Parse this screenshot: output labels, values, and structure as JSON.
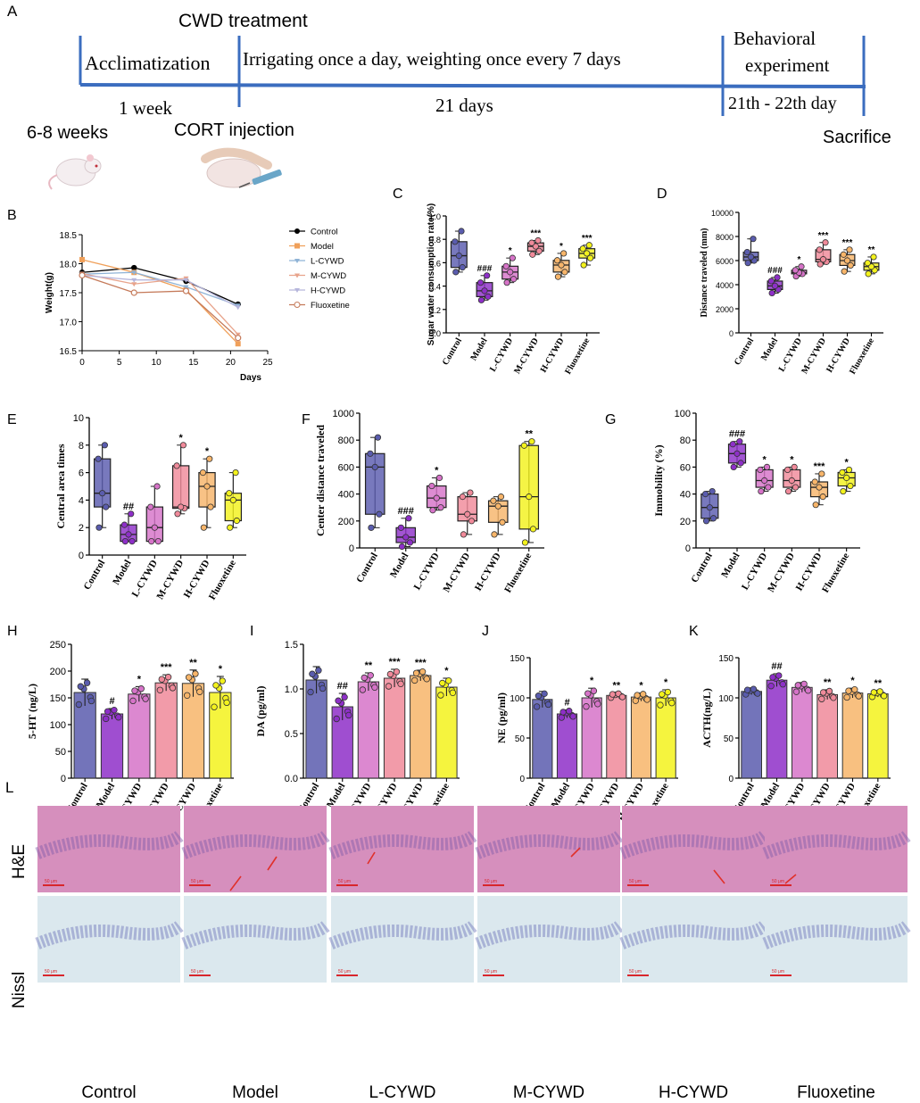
{
  "colors": {
    "control": "#5a5cae",
    "model": "#8e2fc8",
    "l": "#d673c8",
    "m": "#f08a9a",
    "h": "#f7b56a",
    "f": "#f3f21c",
    "axis": "#000000",
    "timeline": "#3b6dbf",
    "he_bg": "#d68fbd",
    "nissl_bg": "#dbe8ee",
    "arrow": "#e0302a"
  },
  "groups": [
    "Control",
    "Model",
    "L-CYWD",
    "M-CYWD",
    "H-CYWD",
    "Fluoxetine"
  ],
  "panelA": {
    "letter": "A",
    "cwd_treatment": "CWD treatment",
    "acclimatization": "Acclimatization",
    "irrigating": "Irrigating once a day, weighting once every 7 days",
    "behavioral1": "Behavioral",
    "behavioral2": "experiment",
    "one_week": "1 week",
    "days21": "21 days",
    "day_range": "21th - 22th day",
    "weeks": "6-8 weeks",
    "cort": "CORT injection",
    "sacrifice": "Sacrifice",
    "mouse_icon": "mouse-icon",
    "syringe_icon": "syringe-icon"
  },
  "panel_letters": {
    "B": "B",
    "C": "C",
    "D": "D",
    "E": "E",
    "F": "F",
    "G": "G",
    "H": "H",
    "I": "I",
    "J": "J",
    "K": "K",
    "L": "L"
  },
  "chart_data": [
    {
      "id": "B",
      "type": "line",
      "xlabel": "Days",
      "ylabel": "Weight(g)",
      "xlim": [
        0,
        25
      ],
      "ylim": [
        16.5,
        18.5
      ],
      "xticks": [
        "0",
        "5",
        "10",
        "15",
        "20",
        "25"
      ],
      "yticks": [
        "16.5",
        "17.0",
        "17.5",
        "18.0",
        "18.5"
      ],
      "x": [
        0,
        7,
        14,
        21
      ],
      "series": [
        {
          "name": "Control",
          "values": [
            17.85,
            17.93,
            17.7,
            17.3
          ]
        },
        {
          "name": "Model",
          "values": [
            18.07,
            17.85,
            17.55,
            16.62
          ]
        },
        {
          "name": "L-CYWD",
          "values": [
            17.82,
            17.85,
            17.6,
            17.28
          ]
        },
        {
          "name": "M-CYWD",
          "values": [
            17.83,
            17.65,
            17.75,
            16.78
          ]
        },
        {
          "name": "H-CYWD",
          "values": [
            17.8,
            17.72,
            17.72,
            17.25
          ]
        },
        {
          "name": "Fluoxetine",
          "values": [
            17.8,
            17.5,
            17.53,
            16.72
          ]
        }
      ]
    },
    {
      "id": "C",
      "type": "box",
      "ylabel": "Sugar water consumption rate(%)",
      "ylim": [
        0,
        1.0
      ],
      "yticks": [
        "0.0",
        "0.2",
        "0.4",
        "0.6",
        "0.8",
        "1.0"
      ],
      "boxes": [
        [
          0.52,
          0.56,
          0.66,
          0.78,
          0.87
        ],
        [
          0.28,
          0.31,
          0.36,
          0.43,
          0.49
        ],
        [
          0.43,
          0.46,
          0.52,
          0.57,
          0.64
        ],
        [
          0.67,
          0.7,
          0.74,
          0.77,
          0.79
        ],
        [
          0.48,
          0.52,
          0.58,
          0.62,
          0.68
        ],
        [
          0.58,
          0.64,
          0.68,
          0.72,
          0.75
        ]
      ],
      "sig": [
        "",
        "###",
        "*",
        "***",
        "*",
        "***"
      ]
    },
    {
      "id": "D",
      "type": "box",
      "ylabel": "Distance traveled (mm)",
      "ylim": [
        0,
        10000
      ],
      "yticks": [
        "0",
        "2000",
        "4000",
        "6000",
        "8000",
        "10000"
      ],
      "boxes": [
        [
          5800,
          6000,
          6300,
          6700,
          7800
        ],
        [
          3300,
          3600,
          3900,
          4300,
          4600
        ],
        [
          4700,
          4900,
          5000,
          5200,
          5500
        ],
        [
          5700,
          5900,
          6100,
          6900,
          7500
        ],
        [
          5100,
          5600,
          6000,
          6500,
          6900
        ],
        [
          4900,
          5200,
          5500,
          5800,
          6300
        ]
      ],
      "sig": [
        "",
        "###",
        "*",
        "***",
        "***",
        "**"
      ]
    },
    {
      "id": "E",
      "type": "box",
      "ylabel": "Central area times",
      "ylim": [
        0,
        10
      ],
      "yticks": [
        "0",
        "2",
        "4",
        "6",
        "8",
        "10"
      ],
      "boxes": [
        [
          2,
          3.5,
          4.5,
          7,
          8
        ],
        [
          1,
          1,
          1.5,
          2.2,
          3
        ],
        [
          1,
          1,
          2,
          3.5,
          5
        ],
        [
          3,
          3.4,
          3.5,
          6.5,
          8
        ],
        [
          2,
          3.5,
          5,
          6,
          7
        ],
        [
          2,
          2.5,
          4,
          4.5,
          6
        ]
      ],
      "sig": [
        "",
        "##",
        "",
        "*",
        "*",
        ""
      ]
    },
    {
      "id": "F",
      "type": "box",
      "ylabel": "Center distance traveled",
      "ylim": [
        0,
        1000
      ],
      "yticks": [
        "0",
        "200",
        "400",
        "600",
        "800",
        "1000"
      ],
      "boxes": [
        [
          150,
          250,
          600,
          700,
          820
        ],
        [
          10,
          40,
          80,
          150,
          220
        ],
        [
          280,
          300,
          370,
          460,
          520
        ],
        [
          100,
          200,
          250,
          380,
          410
        ],
        [
          100,
          190,
          310,
          350,
          380
        ],
        [
          40,
          140,
          380,
          760,
          790
        ]
      ],
      "sig": [
        "",
        "###",
        "*",
        "",
        "",
        "**"
      ]
    },
    {
      "id": "G",
      "type": "box",
      "ylabel": "Immobility (%)",
      "ylim": [
        0,
        100
      ],
      "yticks": [
        "0",
        "20",
        "40",
        "60",
        "80",
        "100"
      ],
      "boxes": [
        [
          20,
          22,
          30,
          40,
          42
        ],
        [
          60,
          63,
          70,
          77,
          79
        ],
        [
          42,
          45,
          50,
          58,
          60
        ],
        [
          42,
          45,
          50,
          58,
          60
        ],
        [
          32,
          38,
          45,
          49,
          55
        ],
        [
          42,
          46,
          52,
          56,
          58
        ]
      ],
      "sig": [
        "",
        "###",
        "*",
        "*",
        "***",
        "*"
      ]
    },
    {
      "id": "H",
      "type": "bar",
      "ylabel": "5-HT (ng/L)",
      "ylim": [
        0,
        250
      ],
      "yticks": [
        "0",
        "50",
        "100",
        "150",
        "200",
        "250"
      ],
      "values": [
        160,
        120,
        157,
        178,
        177,
        160
      ],
      "errors": [
        25,
        10,
        14,
        15,
        25,
        30
      ],
      "sig": [
        "",
        "#",
        "*",
        "***",
        "**",
        "*"
      ]
    },
    {
      "id": "I",
      "type": "bar",
      "ylabel": "DA (pg/ml)",
      "ylim": [
        0,
        1.5
      ],
      "yticks": [
        "0.0",
        "0.5",
        "1.0",
        "1.5"
      ],
      "values": [
        1.1,
        0.8,
        1.08,
        1.12,
        1.15,
        1.02
      ],
      "errors": [
        0.15,
        0.15,
        0.1,
        0.1,
        0.06,
        0.1
      ],
      "sig": [
        "",
        "##",
        "**",
        "***",
        "***",
        "*"
      ]
    },
    {
      "id": "J",
      "type": "bar",
      "ylabel": "NE (pg/ml)",
      "ylim": [
        0,
        150
      ],
      "yticks": [
        "0",
        "50",
        "100",
        "150"
      ],
      "values": [
        98,
        80,
        100,
        103,
        101,
        100
      ],
      "errors": [
        10,
        5,
        12,
        3,
        5,
        10
      ],
      "sig": [
        "",
        "#",
        "*",
        "**",
        "*",
        "*"
      ]
    },
    {
      "id": "K",
      "type": "bar",
      "ylabel": "ACTH(ng/L)",
      "ylim": [
        0,
        150
      ],
      "yticks": [
        "0",
        "50",
        "100",
        "150"
      ],
      "values": [
        108,
        122,
        113,
        104,
        106,
        105
      ],
      "errors": [
        4,
        8,
        6,
        6,
        6,
        4
      ],
      "sig": [
        "",
        "##",
        "",
        "**",
        "*",
        "**"
      ]
    }
  ],
  "panelL": {
    "row1": "H&E",
    "row2": "Nissl",
    "scale": "50 μm",
    "columns": [
      "Control",
      "Model",
      "L-CYWD",
      "M-CYWD",
      "H-CYWD",
      "Fluoxetine"
    ]
  }
}
